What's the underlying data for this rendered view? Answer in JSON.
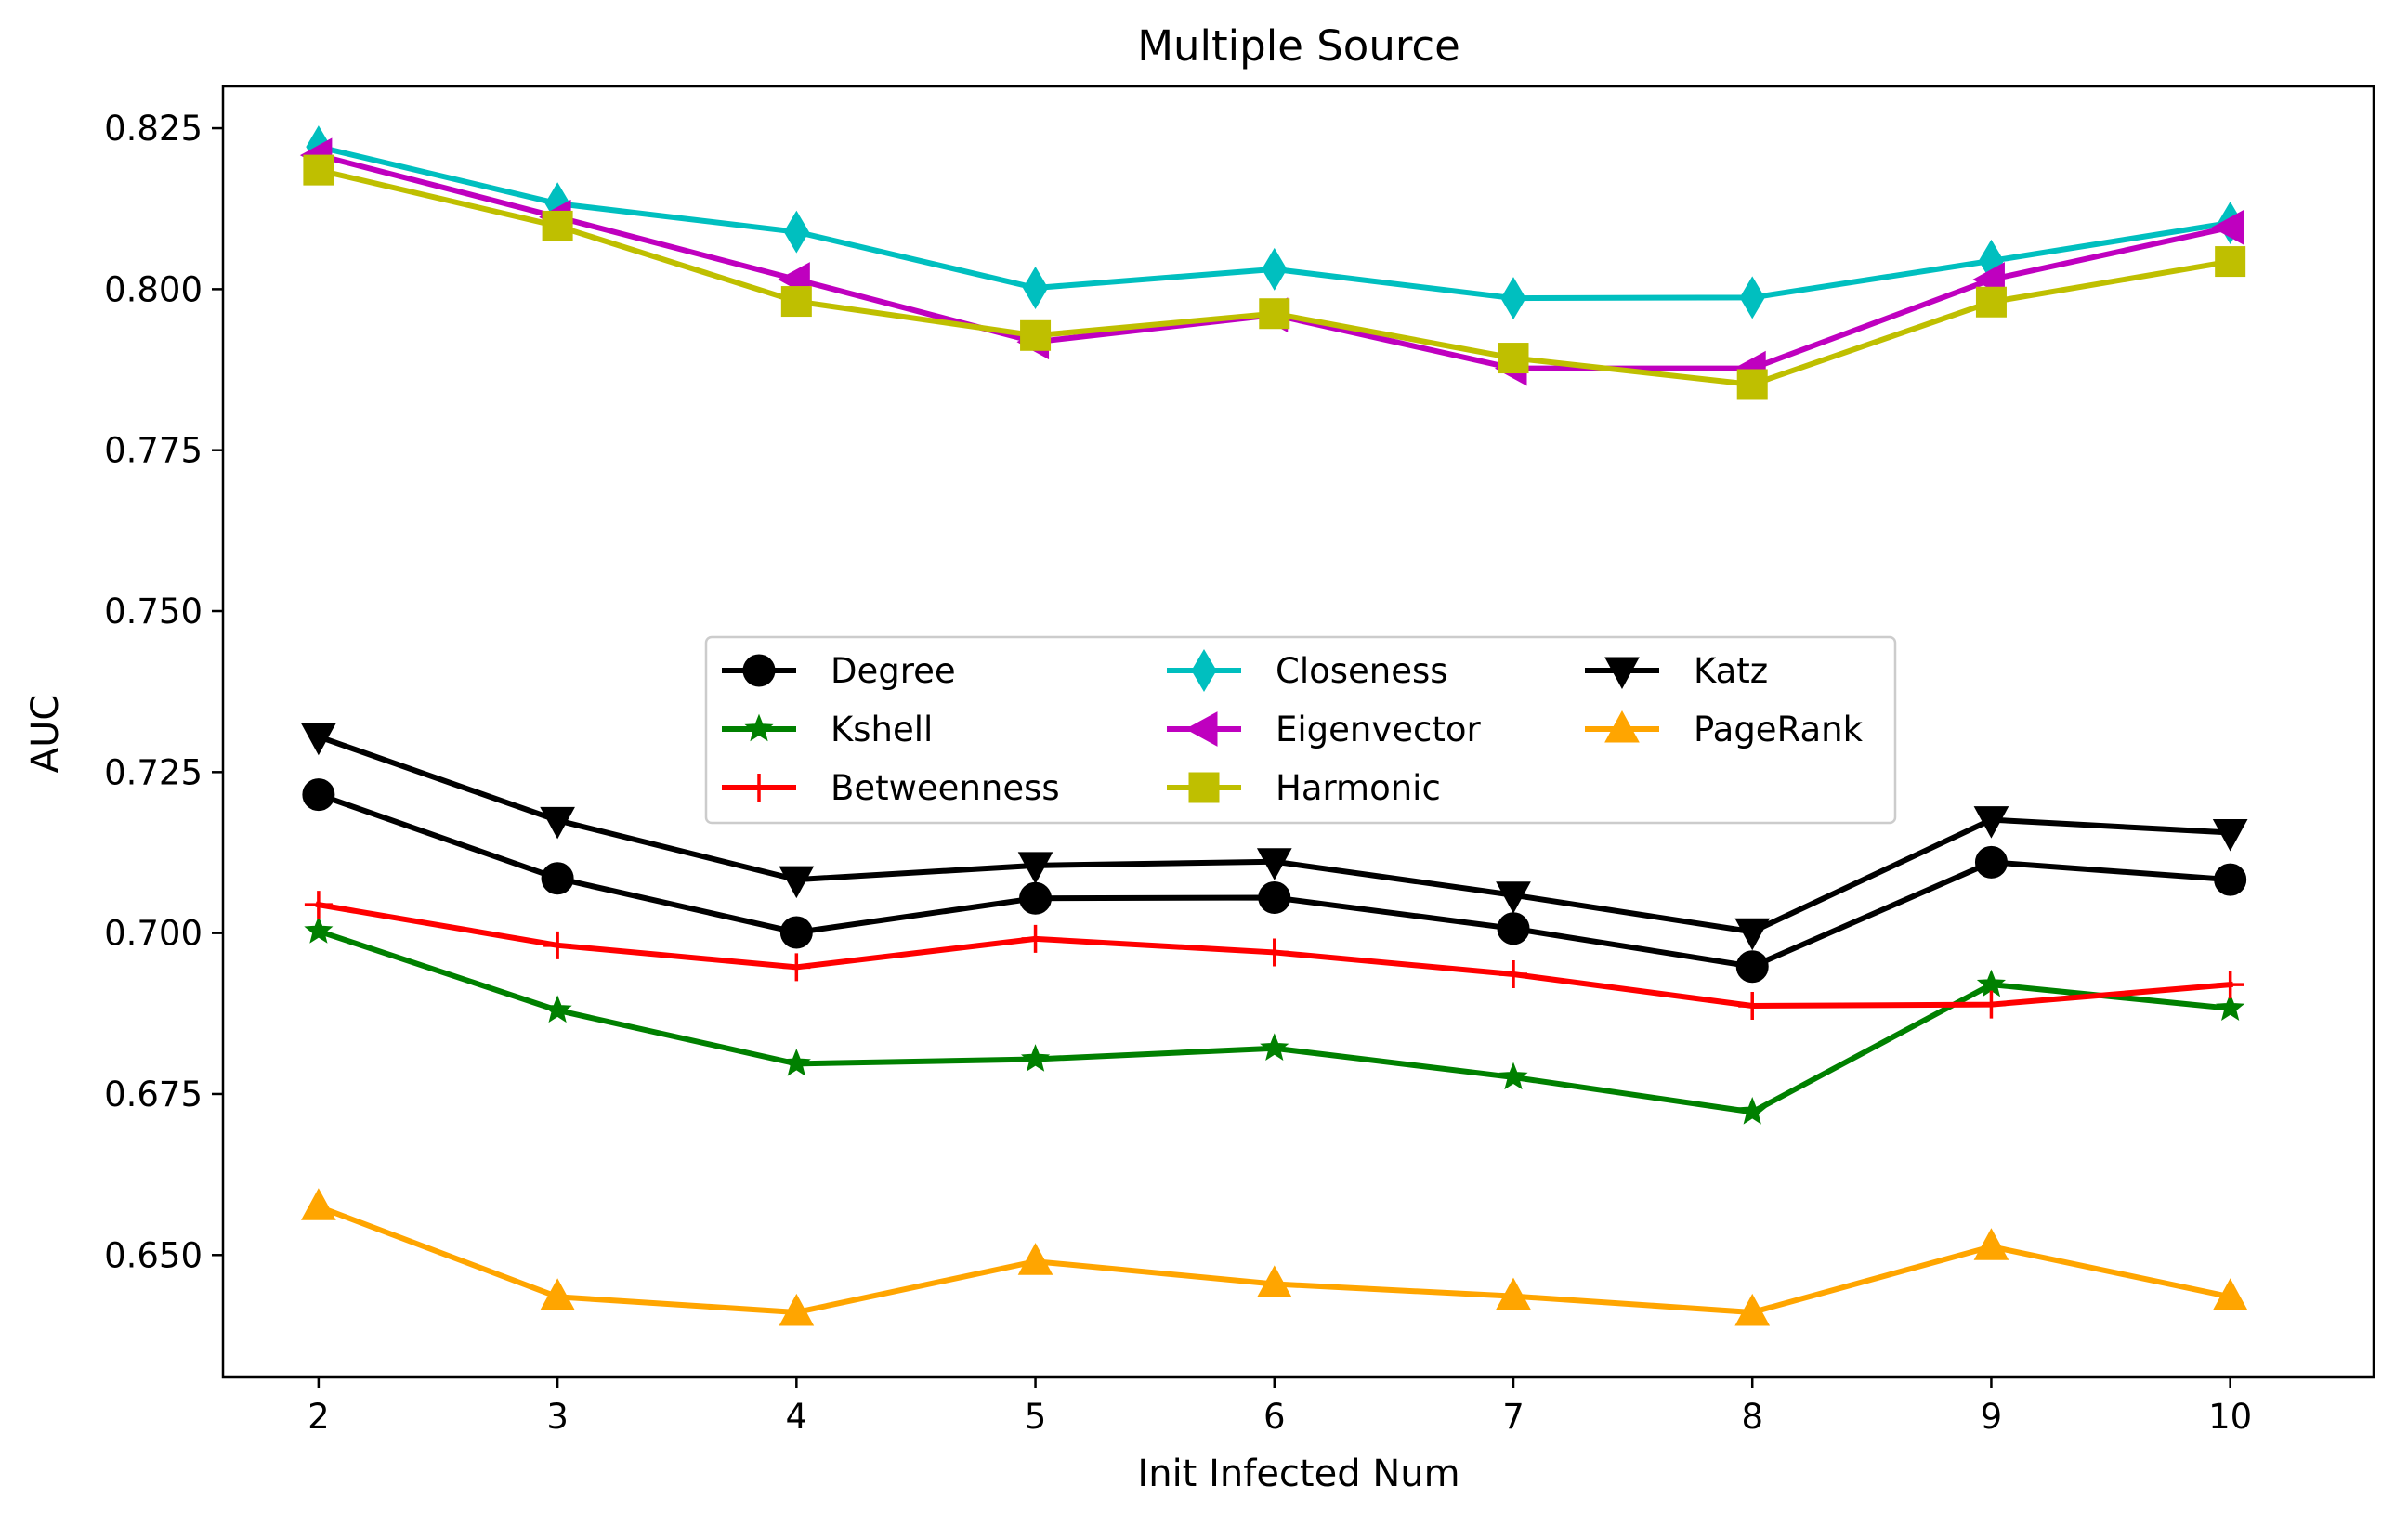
{
  "chart_data": {
    "type": "line",
    "title": "Multiple Source",
    "xlabel": "Init Infected Num",
    "ylabel": "AUC",
    "x": [
      2,
      3,
      4,
      5,
      6,
      7,
      8,
      9,
      10
    ],
    "xlim": [
      1.6,
      10.6
    ],
    "ylim": [
      0.631,
      0.8315
    ],
    "xticks": [
      "2",
      "3",
      "4",
      "5",
      "6",
      "7",
      "8",
      "9",
      "10"
    ],
    "yticks": [
      "0.650",
      "0.675",
      "0.700",
      "0.725",
      "0.750",
      "0.775",
      "0.800",
      "0.825"
    ],
    "grid": false,
    "legend_position": "center",
    "legend_columns": 3,
    "series": [
      {
        "name": "Degree",
        "color": "#000000",
        "marker": "circle",
        "values": [
          0.7215,
          0.7085,
          0.7001,
          0.7054,
          0.7055,
          0.7007,
          0.6948,
          0.711,
          0.7083
        ]
      },
      {
        "name": "Kshell",
        "color": "#008000",
        "marker": "star",
        "values": [
          0.7003,
          0.688,
          0.6797,
          0.6804,
          0.6821,
          0.6776,
          0.6722,
          0.692,
          0.6883
        ]
      },
      {
        "name": "Betweenness",
        "color": "#ff0000",
        "marker": "plus",
        "values": [
          0.7044,
          0.6981,
          0.6947,
          0.6991,
          0.697,
          0.6936,
          0.6887,
          0.6889,
          0.692
        ]
      },
      {
        "name": "Closeness",
        "color": "#00bfbf",
        "marker": "thin-diamond",
        "values": [
          0.8221,
          0.8133,
          0.8089,
          0.8002,
          0.8031,
          0.7986,
          0.7987,
          0.8044,
          0.8103
        ]
      },
      {
        "name": "Eigenvector",
        "color": "#bf00bf",
        "marker": "triangle-left",
        "values": [
          0.8208,
          0.8112,
          0.8015,
          0.7918,
          0.796,
          0.7877,
          0.7877,
          0.8015,
          0.8096
        ]
      },
      {
        "name": "Harmonic",
        "color": "#bfbf00",
        "marker": "square",
        "values": [
          0.8185,
          0.8098,
          0.7981,
          0.7928,
          0.7962,
          0.7893,
          0.7852,
          0.798,
          0.8043
        ]
      },
      {
        "name": "Katz",
        "color": "#000000",
        "marker": "triangle-down",
        "values": [
          0.7305,
          0.7175,
          0.7083,
          0.7105,
          0.7111,
          0.7059,
          0.7002,
          0.7176,
          0.7156
        ]
      },
      {
        "name": "PageRank",
        "color": "#ffa500",
        "marker": "triangle-up",
        "values": [
          0.6575,
          0.6435,
          0.6411,
          0.649,
          0.6455,
          0.6436,
          0.6411,
          0.6513,
          0.6435
        ]
      }
    ]
  }
}
